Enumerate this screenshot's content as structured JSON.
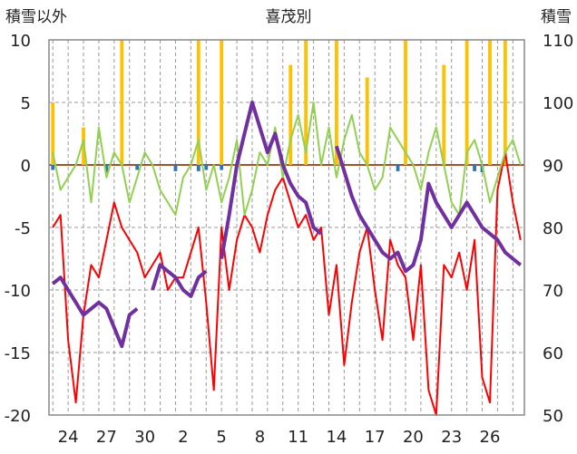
{
  "chart_data": {
    "type": "line",
    "title": "喜茂別",
    "ylabel_left": "積雪以外",
    "ylabel_right": "積雪",
    "ylim_left": [
      -20,
      10
    ],
    "ylim_right": [
      50,
      110
    ],
    "yticks_left": [
      10,
      5,
      0,
      -5,
      -10,
      -15,
      -20
    ],
    "yticks_right": [
      110,
      100,
      90,
      80,
      70,
      60,
      50
    ],
    "x_count": 62,
    "xtick_positions": [
      2,
      7,
      12,
      17,
      22,
      27,
      32,
      37,
      42,
      47,
      52,
      57
    ],
    "xtick_labels": [
      "24",
      "27",
      "30",
      "2",
      "5",
      "8",
      "11",
      "14",
      "17",
      "20",
      "23",
      "26"
    ],
    "grid": true,
    "colors": {
      "red_series": "#ff0000",
      "green_series": "#92d050",
      "orange_series": "#ffc000",
      "blue_series": "#2e75b6",
      "purple_series": "#7030a0",
      "zero_line": "#a0522d"
    },
    "series": [
      {
        "axis": "left",
        "type": "line",
        "color": "#ff0000",
        "values": [
          -5,
          -4,
          -14,
          -19,
          -12,
          -8,
          -9,
          -6,
          -3,
          -5,
          -6,
          -7,
          -9,
          -8,
          -7,
          -10,
          -9,
          -9,
          -7,
          -5,
          -11,
          -18,
          -5,
          -10,
          -6,
          -4,
          -5,
          -7,
          -4,
          -2,
          -1,
          -3,
          -5,
          -4,
          -6,
          -5,
          -12,
          -8,
          -16,
          -11,
          -7,
          -5,
          -10,
          -14,
          -6,
          -8,
          -9,
          -14,
          -8,
          -18,
          -20,
          -8,
          -9,
          -7,
          -10,
          -6,
          -17,
          -19,
          -2,
          1,
          -3,
          -6
        ]
      },
      {
        "axis": "left",
        "type": "line",
        "color": "#92d050",
        "values": [
          1,
          -2,
          -1,
          0,
          2,
          -3,
          3,
          -1,
          1,
          0,
          -3,
          -1,
          1,
          0,
          -2,
          -3,
          -4,
          -1,
          0,
          2,
          -2,
          0,
          -3,
          -1,
          2,
          -4,
          -2,
          1,
          0,
          3,
          -1,
          2,
          4,
          1,
          5,
          0,
          3,
          -1,
          2,
          4,
          1,
          0,
          -2,
          -1,
          3,
          2,
          1,
          0,
          -2,
          1,
          3,
          0,
          -3,
          -4,
          1,
          2,
          0,
          -3,
          -1,
          1,
          2,
          0
        ]
      },
      {
        "axis": "left",
        "type": "bar",
        "color": "#ffc000",
        "values": [
          5,
          0,
          0,
          0,
          3,
          0,
          0,
          0,
          0,
          10,
          0,
          0,
          0,
          0,
          0,
          0,
          0,
          0,
          0,
          10,
          0,
          0,
          10,
          0,
          0,
          0,
          0,
          0,
          0,
          0,
          0,
          8,
          0,
          10,
          0,
          0,
          0,
          10,
          0,
          0,
          0,
          7,
          0,
          0,
          0,
          0,
          10,
          0,
          0,
          0,
          0,
          8,
          0,
          0,
          10,
          0,
          0,
          10,
          0,
          10,
          0,
          0
        ]
      },
      {
        "axis": "left",
        "type": "bar",
        "color": "#2e75b6",
        "values": [
          -0.4,
          0,
          0,
          0,
          0,
          0,
          0,
          -0.6,
          0,
          0,
          0,
          -0.4,
          0,
          0,
          0,
          0,
          -0.5,
          0,
          0,
          -0.5,
          -0.4,
          0,
          -0.4,
          0,
          0,
          0,
          0,
          0,
          0,
          0,
          0,
          0,
          0,
          0,
          0,
          0,
          0,
          0,
          0,
          0,
          0,
          0,
          0,
          0,
          0,
          -0.5,
          0,
          0,
          0,
          0,
          0,
          0,
          0,
          0,
          0,
          -0.5,
          -0.6,
          0,
          0,
          0,
          0,
          0
        ]
      },
      {
        "axis": "right",
        "type": "line",
        "color": "#7030a0",
        "values": [
          71,
          72,
          70,
          68,
          66,
          67,
          68,
          67,
          64,
          61,
          66,
          67,
          null,
          70,
          74,
          73,
          72,
          70,
          69,
          72,
          73,
          null,
          75,
          82,
          90,
          95,
          100,
          96,
          92,
          95,
          90,
          87,
          85,
          84,
          80,
          79,
          null,
          93,
          89,
          85,
          82,
          80,
          78,
          76,
          75,
          76,
          73,
          74,
          78,
          87,
          84,
          82,
          80,
          82,
          84,
          82,
          80,
          79,
          78,
          76,
          75,
          74
        ]
      }
    ]
  }
}
